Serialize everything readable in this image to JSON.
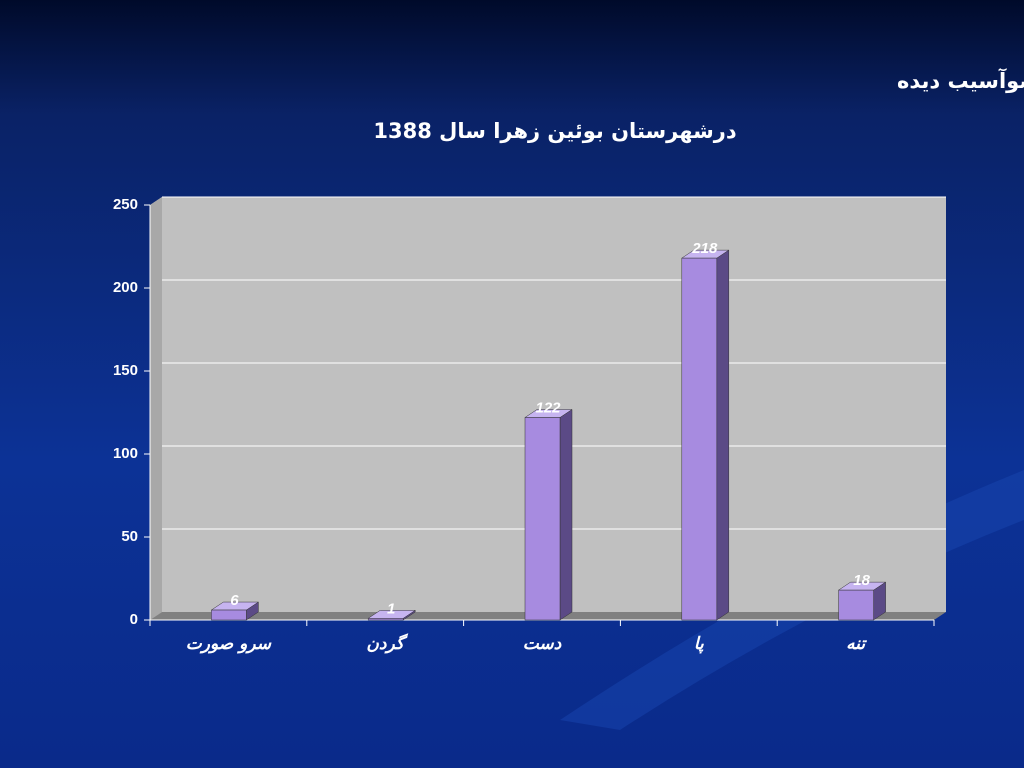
{
  "chart_data": {
    "type": "bar",
    "title": "نمودارتعداد موارد حیوان گزیدگی برحسب عضوآسیب دیده",
    "subtitle": "درشهرستان بوئین زهرا سال 1388",
    "categories": [
      "سرو صورت",
      "گردن",
      "دست",
      "پا",
      "تنه"
    ],
    "values": [
      6,
      1,
      122,
      218,
      18
    ],
    "color": "#a78be0",
    "ylim": [
      0,
      250
    ],
    "yticks": [
      0,
      50,
      100,
      150,
      200,
      250
    ],
    "grid": true
  }
}
